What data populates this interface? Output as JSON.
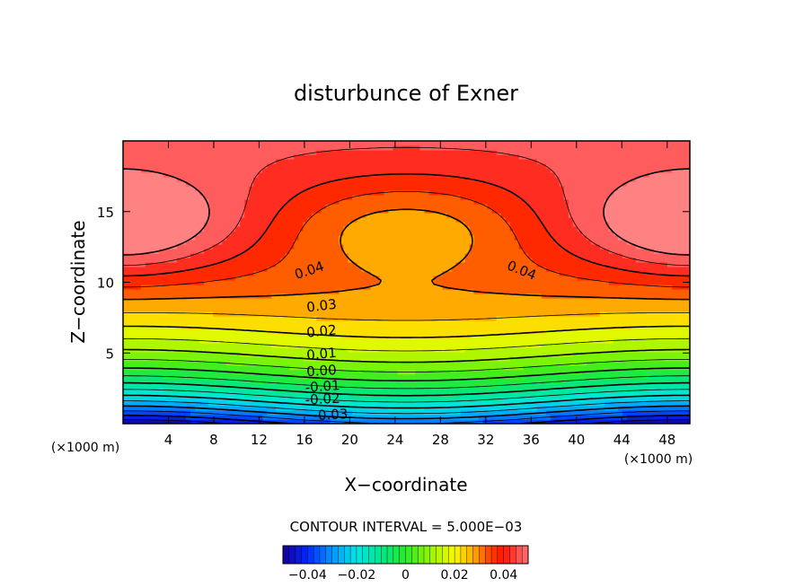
{
  "chart_data": {
    "type": "heatmap",
    "title": "disturbunce of Exner",
    "xlabel": "X−coordinate",
    "ylabel": "Z−coordinate",
    "x_unit_label": "(×1000 m)",
    "z_unit_label": "(×1000 m)",
    "xlim": [
      0,
      50
    ],
    "ylim": [
      0,
      20
    ],
    "x_ticks": [
      4,
      8,
      12,
      16,
      20,
      24,
      28,
      32,
      36,
      40,
      44,
      48
    ],
    "x_tick_labels": [
      "4",
      "8",
      "12",
      "16",
      "20",
      "24",
      "28",
      "32",
      "36",
      "40",
      "44",
      "48"
    ],
    "y_ticks": [
      5,
      10,
      15
    ],
    "y_tick_labels": [
      "5",
      "10",
      "15"
    ],
    "contour_interval_label": "CONTOUR INTERVAL = 5.000E−03",
    "contour_interval": 0.005,
    "value_range": [
      -0.05,
      0.05
    ],
    "contour_labels": [
      {
        "text": "0.04",
        "x": 16.4,
        "z": 10.9,
        "angle": -18
      },
      {
        "text": "0.04",
        "x": 35.2,
        "z": 10.9,
        "angle": 22
      },
      {
        "text": "0.03",
        "x": 17.5,
        "z": 8.4,
        "angle": -7
      },
      {
        "text": "0.02",
        "x": 17.5,
        "z": 6.6,
        "angle": -6
      },
      {
        "text": "0.01",
        "x": 17.5,
        "z": 5.0,
        "angle": -5
      },
      {
        "text": "0.00",
        "x": 17.5,
        "z": 3.8,
        "angle": -4
      },
      {
        "text": "-0.01",
        "x": 17.6,
        "z": 2.7,
        "angle": -4
      },
      {
        "text": "-0.02",
        "x": 17.6,
        "z": 1.8,
        "angle": -3
      },
      {
        "text": "-0.03",
        "x": 18.3,
        "z": 0.7,
        "angle": -3
      }
    ],
    "colorbar": {
      "ticks": [
        -0.04,
        -0.02,
        0,
        0.02,
        0.04
      ],
      "tick_labels": [
        "−0.04",
        "−0.02",
        "0",
        "0.02",
        "0.04"
      ]
    },
    "colors": {
      "min": "#1a00b0",
      "mid": "#20ff20",
      "max": "#ff1a00",
      "top_light": "#ff7a7a"
    }
  }
}
